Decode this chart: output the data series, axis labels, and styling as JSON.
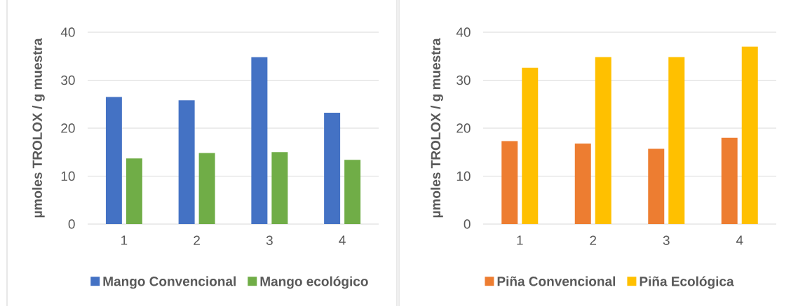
{
  "chart_data": [
    {
      "type": "bar",
      "ylabel": "µmoles TROLOX / g muestra",
      "categories": [
        "1",
        "2",
        "3",
        "4"
      ],
      "series": [
        {
          "name": "Mango Convencional",
          "color": "#4472c4",
          "values": [
            26.5,
            25.8,
            34.8,
            23.2
          ]
        },
        {
          "name": "Mango ecológico",
          "color": "#70ad47",
          "values": [
            13.7,
            14.8,
            15.0,
            13.4
          ]
        }
      ],
      "ylim": [
        0,
        40
      ],
      "yticks": [
        0,
        10,
        20,
        30,
        40
      ],
      "grid": "y",
      "legend": "bottom"
    },
    {
      "type": "bar",
      "ylabel": "µmoles TROLOX / g muestra",
      "categories": [
        "1",
        "2",
        "3",
        "4"
      ],
      "series": [
        {
          "name": "Piña Convencional",
          "color": "#ed7d31",
          "values": [
            17.3,
            16.8,
            15.7,
            18.0
          ]
        },
        {
          "name": "Piña Ecológica",
          "color": "#ffc000",
          "values": [
            32.6,
            34.8,
            34.8,
            37.0
          ]
        }
      ],
      "ylim": [
        0,
        40
      ],
      "yticks": [
        0,
        10,
        20,
        30,
        40
      ],
      "grid": "y",
      "legend": "bottom"
    }
  ]
}
